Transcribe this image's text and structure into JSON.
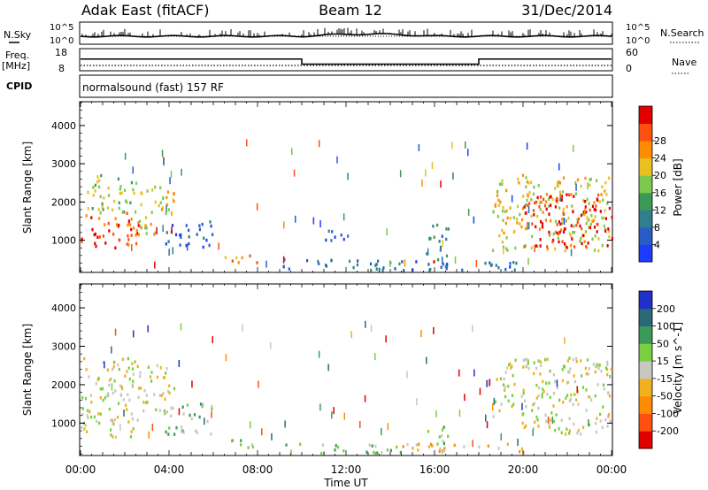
{
  "header": {
    "station": "Adak East (fitACF)",
    "beam": "Beam 12",
    "date": "31/Dec/2014"
  },
  "strips": {
    "nsky_label": "N.Sky",
    "nsearch_label": "N.Search",
    "freq_label_top": "Freq.",
    "freq_label_unit": "[MHz]",
    "nave_label": "Nave",
    "cpid_label": "CPID",
    "cpid_text": "normalsound (fast) 157 RF",
    "noise_ticks_left": [
      "10^5",
      "10^0"
    ],
    "noise_ticks_right": [
      "10^5",
      "10^0"
    ],
    "freq_ticks": [
      "18",
      "8"
    ],
    "nave_ticks": [
      "60",
      "0"
    ],
    "freq_steps": [
      {
        "from": "00:00",
        "to": "10:00",
        "mhz": 13.3
      },
      {
        "from": "10:00",
        "to": "18:00",
        "mhz": 11.0
      },
      {
        "from": "18:00",
        "to": "24:00",
        "mhz": 13.3
      }
    ]
  },
  "chart_data": [
    {
      "type": "heatmap",
      "name": "power-panel",
      "ylabel": "Slant Range [km]",
      "xlabel": "Time UT",
      "x_ticks": [
        "00:00",
        "04:00",
        "08:00",
        "12:00",
        "16:00",
        "20:00",
        "00:00"
      ],
      "xlim_hours": [
        0,
        24
      ],
      "ylim_km": [
        180,
        4600
      ],
      "y_ticks": [
        "1000",
        "2000",
        "3000",
        "4000"
      ],
      "colorbar": {
        "label": "Power [dB]",
        "ticks": [
          "4",
          "8",
          "12",
          "16",
          "20",
          "24",
          "28"
        ],
        "colors": [
          "#1e3cff",
          "#2a5cc8",
          "#2f7f8f",
          "#3c9a58",
          "#7ec850",
          "#e8c020",
          "#ff8c00",
          "#ff5010",
          "#e00000"
        ]
      },
      "scatter_regions": [
        {
          "t0": 0.0,
          "t1": 2.6,
          "r0": 700,
          "r1": 1700,
          "level": 7
        },
        {
          "t0": 0.0,
          "t1": 2.5,
          "r0": 1700,
          "r1": 2700,
          "level": 4
        },
        {
          "t0": 2.5,
          "t1": 4.2,
          "r0": 1100,
          "r1": 2500,
          "level": 5
        },
        {
          "t0": 3.8,
          "t1": 6.0,
          "r0": 800,
          "r1": 1500,
          "level": 1
        },
        {
          "t0": 6.5,
          "t1": 8.1,
          "r0": 350,
          "r1": 600,
          "level": 6
        },
        {
          "t0": 9.0,
          "t1": 14.5,
          "r0": 200,
          "r1": 500,
          "level": 2
        },
        {
          "t0": 10.8,
          "t1": 12.3,
          "r0": 950,
          "r1": 1250,
          "level": 1
        },
        {
          "t0": 15.6,
          "t1": 16.6,
          "r0": 300,
          "r1": 1400,
          "level": 2
        },
        {
          "t0": 15.9,
          "t1": 16.3,
          "r0": 350,
          "r1": 500,
          "level": 8
        },
        {
          "t0": 14.5,
          "t1": 20.0,
          "r0": 200,
          "r1": 450,
          "level": 1
        },
        {
          "t0": 18.6,
          "t1": 24.0,
          "r0": 700,
          "r1": 2700,
          "level": 5
        },
        {
          "t0": 20.0,
          "t1": 24.0,
          "r0": 800,
          "r1": 2200,
          "level": 8
        }
      ]
    },
    {
      "type": "heatmap",
      "name": "velocity-panel",
      "ylabel": "Slant Range [km]",
      "xlabel": "Time UT",
      "x_ticks": [
        "00:00",
        "04:00",
        "08:00",
        "12:00",
        "16:00",
        "20:00",
        "00:00"
      ],
      "xlim_hours": [
        0,
        24
      ],
      "ylim_km": [
        180,
        4600
      ],
      "y_ticks": [
        "1000",
        "2000",
        "3000",
        "4000"
      ],
      "colorbar": {
        "label": "Velocity [m s^-1]",
        "ticks": [
          "200",
          "100",
          "50",
          "15",
          "-15",
          "-50",
          "-100",
          "-200"
        ],
        "colors": [
          "#2030c8",
          "#2a6a78",
          "#3c9a58",
          "#78d040",
          "#c8c8c0",
          "#f0b020",
          "#ff8c00",
          "#ff5010",
          "#e00000"
        ]
      },
      "scatter_regions": [
        {
          "t0": 0.0,
          "t1": 2.6,
          "r0": 600,
          "r1": 2700,
          "level": 4
        },
        {
          "t0": 2.5,
          "t1": 4.2,
          "r0": 1200,
          "r1": 2500,
          "level": 4
        },
        {
          "t0": 3.8,
          "t1": 6.0,
          "r0": 700,
          "r1": 1500,
          "level": 3
        },
        {
          "t0": 6.5,
          "t1": 8.1,
          "r0": 300,
          "r1": 550,
          "level": 3
        },
        {
          "t0": 9.0,
          "t1": 14.5,
          "r0": 200,
          "r1": 450,
          "level": 3
        },
        {
          "t0": 15.6,
          "t1": 16.6,
          "r0": 300,
          "r1": 900,
          "level": 3
        },
        {
          "t0": 14.5,
          "t1": 20.0,
          "r0": 200,
          "r1": 450,
          "level": 5
        },
        {
          "t0": 18.6,
          "t1": 24.0,
          "r0": 700,
          "r1": 2700,
          "level": 4
        }
      ]
    }
  ]
}
